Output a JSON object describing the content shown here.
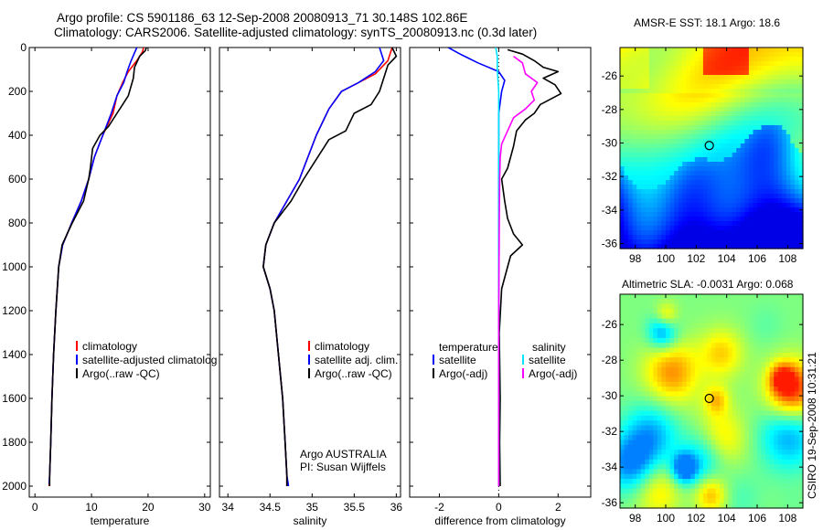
{
  "title": {
    "line1": "Argo profile: CS 5901186_63 12-Sep-2008 20080913_71 30.148S 102.86E",
    "line2": "Climatology: CARS2006. Satellite-adjusted climatology: synTS_20080913.nc (0.3d later)"
  },
  "credit": "CSIRO 19-Sep-2008 10:31:21",
  "colors": {
    "climatology": "#ff0000",
    "satellite": "#0000ff",
    "argo": "#000000",
    "satellite_salinity": "#00e5ff",
    "argo_salinity": "#ff00ff",
    "zero_line": "#000000"
  },
  "chart_data": [
    {
      "type": "line",
      "id": "temperature-panel",
      "xlabel": "temperature",
      "ylabel": "",
      "xlim": [
        -1,
        31
      ],
      "ylim": [
        2050,
        0
      ],
      "y_reversed": true,
      "xticks": [
        0,
        10,
        20,
        30
      ],
      "yticks": [
        0,
        200,
        400,
        600,
        800,
        1000,
        1200,
        1400,
        1600,
        1800,
        2000
      ],
      "legend": [
        "climatology",
        "satellite-adjusted climatolog",
        "Argo(..raw -QC)"
      ],
      "legend_placement": "lower-middle",
      "series": [
        {
          "name": "climatology",
          "color_key": "climatology",
          "points": [
            [
              19.2,
              0
            ],
            [
              19,
              20
            ],
            [
              18,
              60
            ],
            [
              16.5,
              110
            ],
            [
              15.5,
              160
            ],
            [
              14.5,
              220
            ],
            [
              13.8,
              300
            ],
            [
              12,
              400
            ],
            [
              10.5,
              500
            ],
            [
              9.5,
              600
            ],
            [
              8.2,
              700
            ],
            [
              6.5,
              800
            ],
            [
              4.9,
              900
            ],
            [
              4.2,
              1000
            ],
            [
              3.7,
              1200
            ],
            [
              3.3,
              1400
            ],
            [
              3,
              1600
            ],
            [
              2.8,
              1800
            ],
            [
              2.6,
              1950
            ],
            [
              2.5,
              2000
            ]
          ]
        },
        {
          "name": "satellite-adjusted climatolog",
          "color_key": "satellite",
          "points": [
            [
              18,
              0
            ],
            [
              17,
              60
            ],
            [
              16.3,
              110
            ],
            [
              15.7,
              160
            ],
            [
              14.5,
              220
            ],
            [
              13.5,
              300
            ],
            [
              12,
              400
            ],
            [
              10.5,
              500
            ],
            [
              9.5,
              600
            ],
            [
              8.2,
              700
            ],
            [
              6.5,
              800
            ],
            [
              4.9,
              900
            ],
            [
              4.2,
              1000
            ],
            [
              3.7,
              1200
            ],
            [
              3.3,
              1400
            ],
            [
              3,
              1600
            ],
            [
              2.8,
              1800
            ],
            [
              2.6,
              1950
            ],
            [
              2.5,
              1990
            ]
          ]
        },
        {
          "name": "Argo(..raw -QC)",
          "color_key": "argo",
          "points": [
            [
              19.7,
              0
            ],
            [
              19.5,
              15
            ],
            [
              18.5,
              40
            ],
            [
              17.6,
              90
            ],
            [
              17.4,
              140
            ],
            [
              16.5,
              220
            ],
            [
              15.5,
              260
            ],
            [
              14.5,
              300
            ],
            [
              13,
              360
            ],
            [
              11.5,
              400
            ],
            [
              10.2,
              460
            ],
            [
              9.8,
              550
            ],
            [
              9.5,
              600
            ],
            [
              8.6,
              700
            ],
            [
              6.6,
              800
            ],
            [
              4.8,
              900
            ],
            [
              4.2,
              1000
            ],
            [
              3.7,
              1200
            ],
            [
              3.3,
              1400
            ],
            [
              3,
              1600
            ],
            [
              2.8,
              1800
            ],
            [
              2.6,
              1950
            ],
            [
              2.6,
              2000
            ]
          ]
        }
      ]
    },
    {
      "type": "line",
      "id": "salinity-panel",
      "xlabel": "salinity",
      "ylabel": "",
      "xlim": [
        33.9,
        36.05
      ],
      "ylim": [
        2050,
        0
      ],
      "y_reversed": true,
      "xticks": [
        34,
        34.5,
        35,
        35.5,
        36
      ],
      "legend": [
        "climatology",
        "satellite adj. clim.",
        "Argo(..raw -QC)"
      ],
      "legend_placement": "lower-right",
      "annotation": [
        "Argo AUSTRALIA",
        "PI: Susan Wijffels"
      ],
      "series": [
        {
          "name": "climatology",
          "color_key": "climatology",
          "points": [
            [
              35.95,
              0
            ],
            [
              35.9,
              60
            ],
            [
              35.75,
              120
            ],
            [
              35.55,
              160
            ],
            [
              35.35,
              200
            ],
            [
              35.2,
              280
            ],
            [
              35.05,
              400
            ],
            [
              34.95,
              500
            ],
            [
              34.85,
              600
            ],
            [
              34.7,
              700
            ],
            [
              34.55,
              800
            ],
            [
              34.45,
              900
            ],
            [
              34.42,
              1000
            ],
            [
              34.5,
              1100
            ],
            [
              34.55,
              1200
            ],
            [
              34.6,
              1400
            ],
            [
              34.65,
              1600
            ],
            [
              34.68,
              1800
            ],
            [
              34.7,
              1950
            ],
            [
              34.7,
              2000
            ]
          ]
        },
        {
          "name": "satellite adj. clim.",
          "color_key": "satellite",
          "points": [
            [
              35.8,
              0
            ],
            [
              35.85,
              60
            ],
            [
              35.75,
              110
            ],
            [
              35.55,
              160
            ],
            [
              35.35,
              200
            ],
            [
              35.2,
              280
            ],
            [
              35.05,
              400
            ],
            [
              34.95,
              500
            ],
            [
              34.85,
              600
            ],
            [
              34.7,
              700
            ],
            [
              34.55,
              800
            ],
            [
              34.45,
              900
            ],
            [
              34.42,
              1000
            ],
            [
              34.5,
              1100
            ],
            [
              34.55,
              1200
            ],
            [
              34.6,
              1400
            ],
            [
              34.65,
              1600
            ],
            [
              34.68,
              1800
            ],
            [
              34.7,
              1950
            ],
            [
              34.72,
              2000
            ]
          ]
        },
        {
          "name": "Argo(..raw -QC)",
          "color_key": "argo",
          "points": [
            [
              35.95,
              0
            ],
            [
              36,
              40
            ],
            [
              35.9,
              80
            ],
            [
              35.85,
              140
            ],
            [
              35.8,
              200
            ],
            [
              35.7,
              260
            ],
            [
              35.5,
              300
            ],
            [
              35.4,
              380
            ],
            [
              35.2,
              420
            ],
            [
              35.1,
              480
            ],
            [
              35,
              540
            ],
            [
              34.9,
              600
            ],
            [
              34.75,
              700
            ],
            [
              34.55,
              800
            ],
            [
              34.45,
              900
            ],
            [
              34.42,
              1000
            ],
            [
              34.5,
              1100
            ],
            [
              34.55,
              1200
            ],
            [
              34.6,
              1400
            ],
            [
              34.65,
              1600
            ],
            [
              34.68,
              1800
            ],
            [
              34.7,
              1950
            ],
            [
              34.7,
              2000
            ]
          ]
        }
      ]
    },
    {
      "type": "line",
      "id": "difference-panel",
      "xlabel": "difference from climatology",
      "ylabel": "",
      "xlim": [
        -3,
        3.1
      ],
      "ylim": [
        2050,
        0
      ],
      "y_reversed": true,
      "xticks": [
        -2,
        0,
        2
      ],
      "legend_groups": [
        {
          "heading": "temperature",
          "entries": [
            "satellite",
            "Argo(-adj)"
          ]
        },
        {
          "heading": "salinity",
          "entries": [
            "satellite",
            "Argo(-adj)"
          ]
        }
      ],
      "legend_placement": "lower-middle",
      "series": [
        {
          "name": "satellite",
          "group": "temperature",
          "color_key": "satellite",
          "points": [
            [
              -1.7,
              0
            ],
            [
              -1.3,
              30
            ],
            [
              -0.7,
              70
            ],
            [
              0,
              110
            ],
            [
              0.2,
              150
            ],
            [
              0.1,
              200
            ],
            [
              0,
              300
            ],
            [
              0,
              500
            ],
            [
              0,
              700
            ],
            [
              0,
              1000
            ],
            [
              0,
              1400
            ],
            [
              0,
              1800
            ],
            [
              0,
              2000
            ]
          ]
        },
        {
          "name": "Argo(-adj)",
          "group": "temperature",
          "color_key": "argo",
          "points": [
            [
              0.3,
              10
            ],
            [
              0.8,
              30
            ],
            [
              1.2,
              60
            ],
            [
              1.5,
              90
            ],
            [
              2,
              110
            ],
            [
              1.5,
              140
            ],
            [
              1.9,
              170
            ],
            [
              2.1,
              210
            ],
            [
              1.4,
              260
            ],
            [
              1.2,
              300
            ],
            [
              0.9,
              330
            ],
            [
              0.6,
              380
            ],
            [
              0.5,
              450
            ],
            [
              0.3,
              550
            ],
            [
              0.1,
              600
            ],
            [
              0.2,
              700
            ],
            [
              0.3,
              780
            ],
            [
              0.5,
              850
            ],
            [
              0.8,
              900
            ],
            [
              0.4,
              950
            ],
            [
              0.3,
              1000
            ],
            [
              0.1,
              1100
            ],
            [
              0.02,
              1300
            ],
            [
              0.05,
              1600
            ],
            [
              0.03,
              1800
            ],
            [
              0.05,
              2000
            ]
          ]
        },
        {
          "name": "satellite",
          "group": "salinity",
          "color_key": "satellite_salinity",
          "points": [
            [
              -0.1,
              0
            ],
            [
              -0.05,
              40
            ],
            [
              -0.05,
              100
            ],
            [
              0,
              200
            ],
            [
              0,
              300
            ],
            [
              0,
              500
            ],
            [
              0,
              700
            ],
            [
              0,
              900
            ],
            [
              0,
              1200
            ],
            [
              0,
              1500
            ],
            [
              0,
              1800
            ],
            [
              0,
              2000
            ]
          ]
        },
        {
          "name": "Argo(-adj)",
          "group": "salinity",
          "color_key": "argo_salinity",
          "points": [
            [
              0.5,
              40
            ],
            [
              0.8,
              70
            ],
            [
              0.9,
              120
            ],
            [
              1.3,
              160
            ],
            [
              1.1,
              200
            ],
            [
              1.2,
              240
            ],
            [
              0.9,
              280
            ],
            [
              0.5,
              320
            ],
            [
              0.3,
              380
            ],
            [
              0.1,
              440
            ],
            [
              0.05,
              500
            ],
            [
              0.03,
              600
            ],
            [
              0.02,
              800
            ],
            [
              0.01,
              1000
            ],
            [
              0,
              1200
            ],
            [
              0,
              1500
            ],
            [
              0,
              2000
            ]
          ]
        }
      ],
      "zero_line": {
        "x": 0,
        "style": "dotted"
      }
    }
  ],
  "maps": [
    {
      "id": "sst-map",
      "title": "AMSR-E SST: 18.1 Argo: 18.6",
      "xticks": [
        98,
        100,
        102,
        104,
        106,
        108
      ],
      "yticks": [
        -26,
        -28,
        -30,
        -32,
        -34,
        -36
      ],
      "xlim": [
        97,
        109
      ],
      "ylim": [
        -36.3,
        -24.3
      ],
      "marker": {
        "lon": 102.86,
        "lat": -30.148
      }
    },
    {
      "id": "sla-map",
      "title": "Altimetric SLA: -0.0031 Argo: 0.068",
      "xticks": [
        98,
        100,
        102,
        104,
        106,
        108
      ],
      "yticks": [
        -26,
        -28,
        -30,
        -32,
        -34,
        -36
      ],
      "xlim": [
        97,
        109
      ],
      "ylim": [
        -36.3,
        -24.3
      ],
      "marker": {
        "lon": 102.86,
        "lat": -30.148
      }
    }
  ]
}
